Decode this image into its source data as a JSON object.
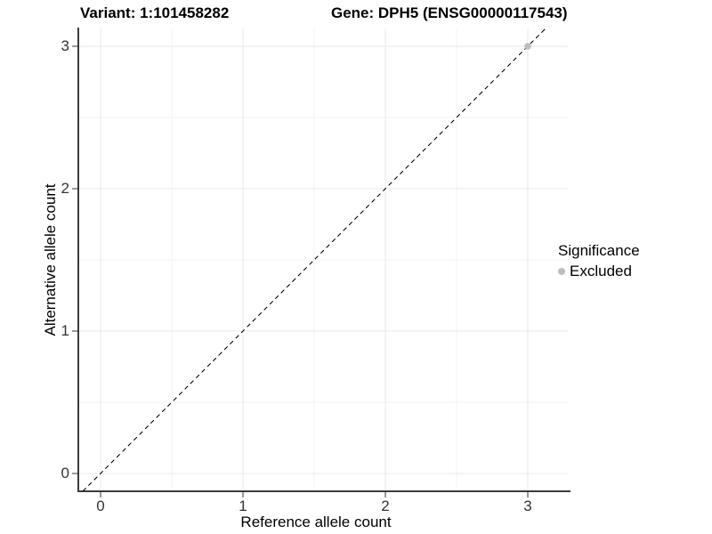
{
  "chart_data": {
    "type": "scatter",
    "title_left": "Variant: 1:101458282",
    "title_right": "Gene: DPH5 (ENSG00000117543)",
    "xlabel": "Reference allele count",
    "ylabel": "Alternative allele count",
    "xlim": [
      -0.16,
      3.28
    ],
    "ylim": [
      -0.13,
      3.13
    ],
    "xticks": [
      "0",
      "1",
      "2",
      "3"
    ],
    "yticks": [
      "0",
      "1",
      "2",
      "3"
    ],
    "grid": "major and minor, light gray, white background",
    "legend": {
      "title": "Significance",
      "position": "right",
      "items": [
        {
          "label": "Excluded",
          "color": "#bdbdbd"
        }
      ]
    },
    "points": [
      {
        "x": 3,
        "y": 3,
        "significance": "Excluded",
        "color": "#bdbdbd",
        "size": 3.8
      }
    ],
    "reference_line": {
      "type": "identity",
      "intercept": 0,
      "slope": 1,
      "style": "dashed",
      "color": "#000000"
    }
  }
}
